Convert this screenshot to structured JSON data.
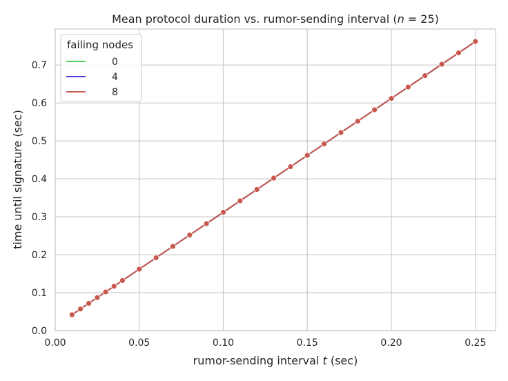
{
  "chart_data": {
    "type": "line",
    "title": {
      "prefix": "Mean protocol duration vs. rumor-sending interval (",
      "var": "n",
      "suffix": " = 25)"
    },
    "xlabel": {
      "prefix": "rumor-sending interval ",
      "var": "t",
      "suffix": " (sec)"
    },
    "ylabel": "time until signature (sec)",
    "xlim": [
      0.0,
      0.262
    ],
    "ylim": [
      0.0,
      0.795
    ],
    "xticks": [
      0.0,
      0.05,
      0.1,
      0.15,
      0.2,
      0.25
    ],
    "xtick_labels": [
      "0.00",
      "0.05",
      "0.10",
      "0.15",
      "0.20",
      "0.25"
    ],
    "yticks": [
      0.0,
      0.1,
      0.2,
      0.3,
      0.4,
      0.5,
      0.6,
      0.7
    ],
    "ytick_labels": [
      "0.0",
      "0.1",
      "0.2",
      "0.3",
      "0.4",
      "0.5",
      "0.6",
      "0.7"
    ],
    "grid": true,
    "legend": {
      "title": "failing nodes",
      "placement": "top-left"
    },
    "x": [
      0.01,
      0.015,
      0.02,
      0.025,
      0.03,
      0.035,
      0.04,
      0.05,
      0.06,
      0.07,
      0.08,
      0.09,
      0.1,
      0.11,
      0.12,
      0.13,
      0.14,
      0.15,
      0.16,
      0.17,
      0.18,
      0.19,
      0.2,
      0.21,
      0.22,
      0.23,
      0.24,
      0.25
    ],
    "series": [
      {
        "name": "0",
        "color": "#4dd15c",
        "values": [
          0.042,
          0.057,
          0.072,
          0.087,
          0.102,
          0.117,
          0.132,
          0.162,
          0.192,
          0.222,
          0.252,
          0.282,
          0.312,
          0.342,
          0.372,
          0.402,
          0.432,
          0.462,
          0.492,
          0.522,
          0.552,
          0.582,
          0.612,
          0.642,
          0.672,
          0.702,
          0.732,
          0.762
        ]
      },
      {
        "name": "4",
        "color": "#4b3fd6",
        "values": [
          0.042,
          0.057,
          0.072,
          0.087,
          0.102,
          0.117,
          0.132,
          0.162,
          0.192,
          0.222,
          0.252,
          0.282,
          0.312,
          0.342,
          0.372,
          0.402,
          0.432,
          0.462,
          0.492,
          0.522,
          0.552,
          0.582,
          0.612,
          0.642,
          0.672,
          0.702,
          0.732,
          0.762
        ]
      },
      {
        "name": "8",
        "color": "#c8574e",
        "values": [
          0.042,
          0.057,
          0.072,
          0.087,
          0.102,
          0.117,
          0.132,
          0.162,
          0.192,
          0.222,
          0.252,
          0.282,
          0.312,
          0.342,
          0.372,
          0.402,
          0.432,
          0.462,
          0.492,
          0.522,
          0.552,
          0.582,
          0.612,
          0.642,
          0.672,
          0.702,
          0.732,
          0.762
        ]
      }
    ]
  }
}
